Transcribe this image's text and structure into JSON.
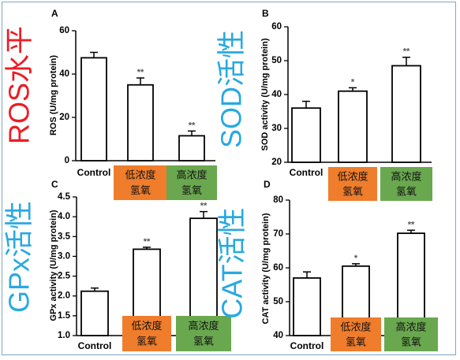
{
  "colors": {
    "low_box": "#ef7d2c",
    "high_box": "#6aa84f",
    "red_label": "#ee1c24",
    "cyan_label": "#29a9e1",
    "frame": "#7da7c9",
    "bar_stroke": "#000000",
    "bar_fill": "#ffffff"
  },
  "chart_data": [
    {
      "type": "bar",
      "panel_letter": "A",
      "side_label": "ROS水平",
      "side_label_color": "#ee1c24",
      "ylabel": "ROS (U/mg protein)",
      "ylim": [
        0,
        60
      ],
      "yticks": [
        "0",
        "20",
        "40",
        "60"
      ],
      "categories": [
        "Control",
        "低浓度\n氢氧",
        "高浓度\n氢氧"
      ],
      "values": [
        47.5,
        35,
        11.5
      ],
      "errors": [
        2.5,
        3.2,
        2.2
      ],
      "significance": [
        "",
        "**",
        "**"
      ]
    },
    {
      "type": "bar",
      "panel_letter": "B",
      "side_label": "SOD活性",
      "side_label_color": "#29a9e1",
      "ylabel": "SOD activity (U/mg protein)",
      "ylim": [
        20,
        60
      ],
      "yticks": [
        "20",
        "30",
        "40",
        "50",
        "60"
      ],
      "categories": [
        "Control",
        "低浓度\n氢氧",
        "高浓度\n氢氧"
      ],
      "values": [
        36,
        41,
        48.5
      ],
      "errors": [
        2.0,
        1.0,
        2.5
      ],
      "significance": [
        "",
        "*",
        "**"
      ]
    },
    {
      "type": "bar",
      "panel_letter": "C",
      "side_label": "GPx活性",
      "side_label_color": "#29a9e1",
      "ylabel": "GPx activity (U/mg protein)",
      "ylim": [
        1.0,
        4.5
      ],
      "yticks": [
        "1.0",
        "1.5",
        "2.0",
        "2.5",
        "3.0",
        "3.5",
        "4.0",
        "4.5"
      ],
      "categories": [
        "Control",
        "低浓度\n氢氧",
        "高浓度\n氢氧"
      ],
      "values": [
        2.12,
        3.18,
        3.96
      ],
      "errors": [
        0.08,
        0.05,
        0.17
      ],
      "significance": [
        "",
        "**",
        "**"
      ]
    },
    {
      "type": "bar",
      "panel_letter": "D",
      "side_label": "CAT活性",
      "side_label_color": "#29a9e1",
      "ylabel": "CAT activity (U/mg protein)",
      "ylim": [
        40,
        80
      ],
      "yticks": [
        "40",
        "50",
        "60",
        "70",
        "80"
      ],
      "categories": [
        "Control",
        "低浓度\n氢氧",
        "高浓度\n氢氧"
      ],
      "values": [
        57,
        60.5,
        70.2
      ],
      "errors": [
        1.8,
        0.7,
        0.9
      ],
      "significance": [
        "",
        "*",
        "**"
      ]
    }
  ]
}
